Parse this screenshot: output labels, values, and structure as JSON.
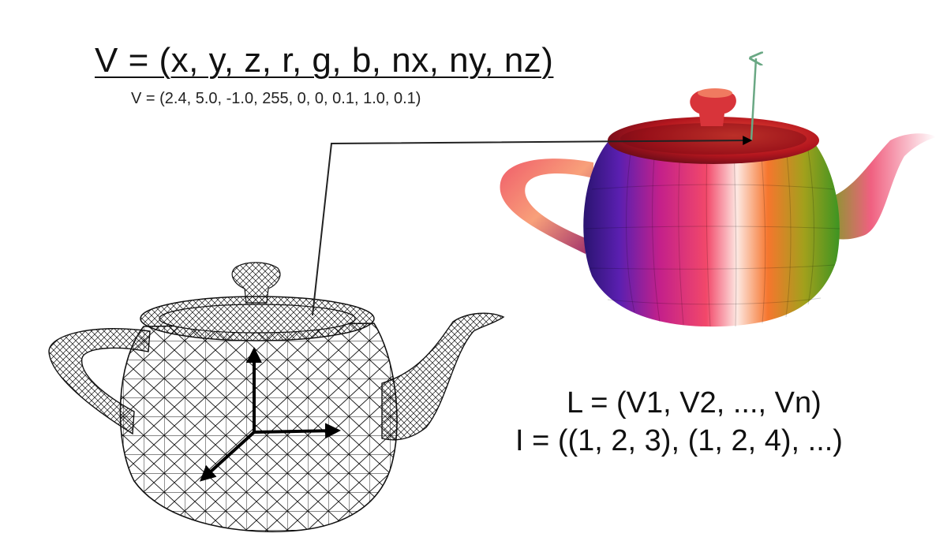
{
  "vertex_format": "V = (x, y, z, r, g, b, nx, ny, nz)",
  "vertex_example": "V = (2.4, 5.0, -1.0, 255, 0, 0, 0.1, 1.0, 0.1)",
  "vertex_list": "L = (V1, V2, ..., Vn)",
  "index_list": "I = ((1, 2, 3), (1, 2, 4), ...)",
  "colors": {
    "normal_arrow": "#6aa884",
    "wire": "#111111",
    "axes": "#000000"
  },
  "icons": [
    "wireframe-teapot",
    "shaded-teapot",
    "axis-gizmo",
    "normal-vector-arrow",
    "connector-line"
  ]
}
